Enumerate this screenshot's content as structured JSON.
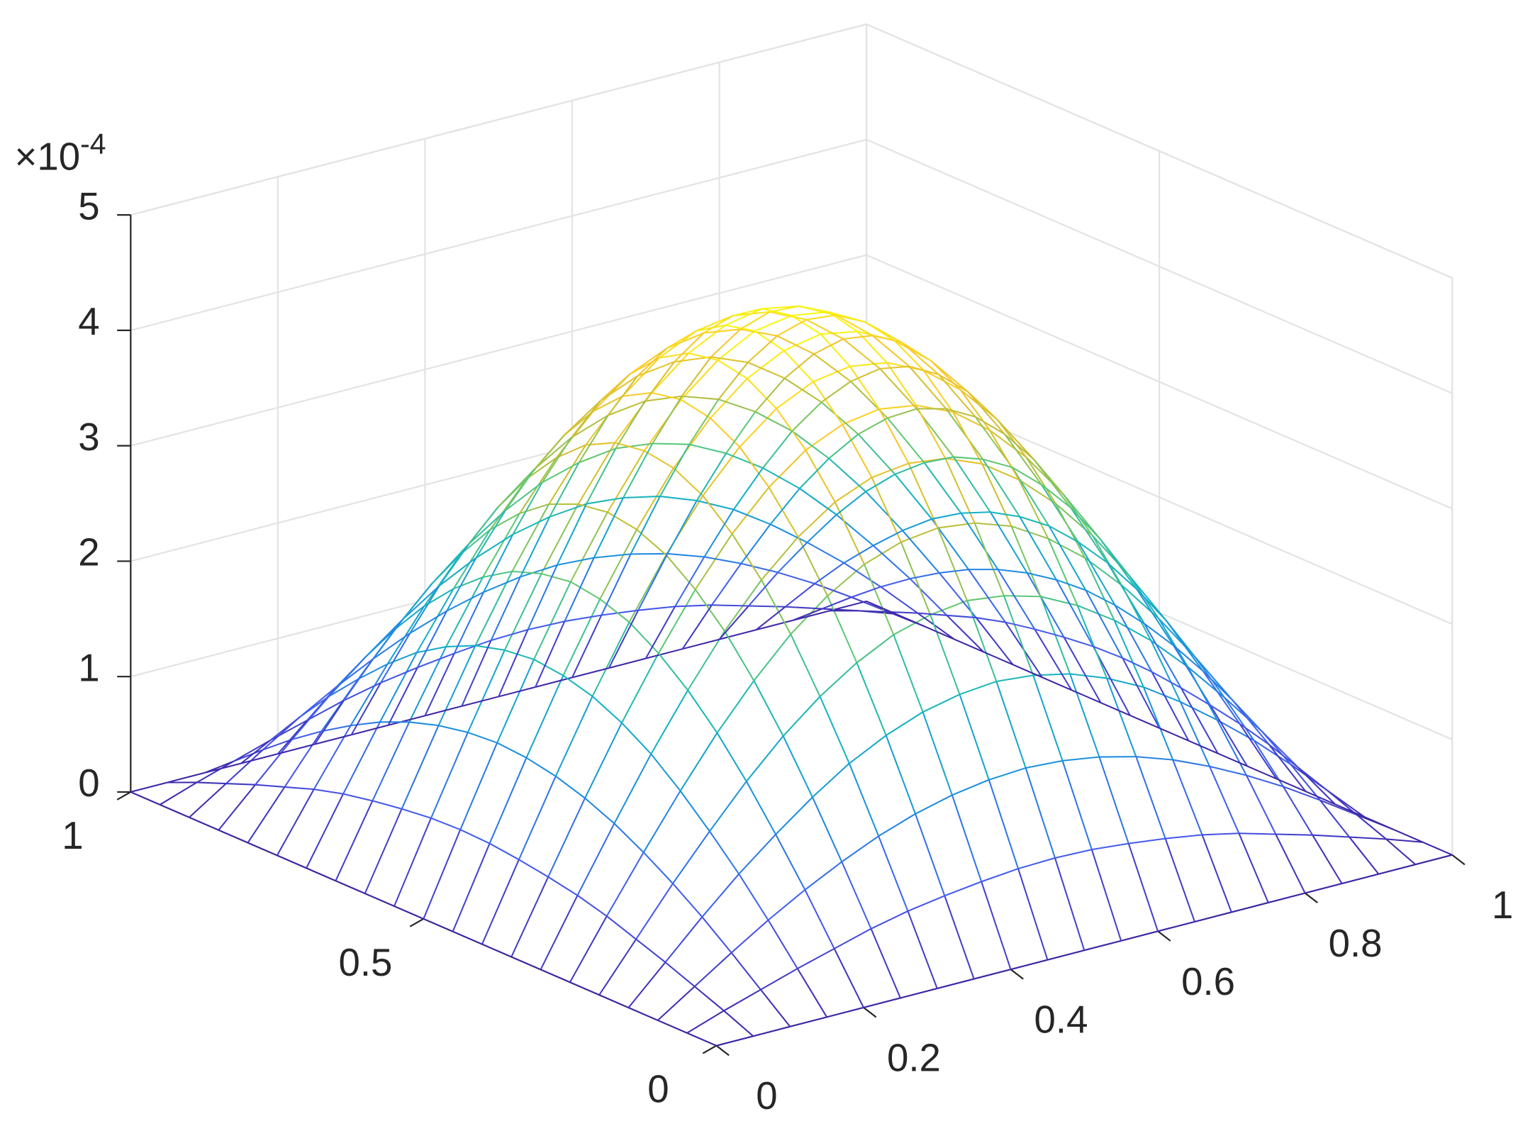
{
  "chart_data": {
    "type": "mesh",
    "z_multiplier": {
      "base": "×10",
      "exponent": "-4"
    },
    "x": [
      0,
      0.05,
      0.1,
      0.15,
      0.2,
      0.25,
      0.3,
      0.35,
      0.4,
      0.45,
      0.5,
      0.55,
      0.6,
      0.65,
      0.7,
      0.75,
      0.8,
      0.85,
      0.9,
      0.95,
      1
    ],
    "y": [
      0,
      0.05,
      0.1,
      0.15,
      0.2,
      0.25,
      0.3,
      0.35,
      0.4,
      0.45,
      0.5,
      0.55,
      0.6,
      0.65,
      0.7,
      0.75,
      0.8,
      0.85,
      0.9,
      0.95,
      1
    ],
    "z": [
      [
        0,
        0,
        0,
        0,
        0,
        0,
        0,
        0,
        0,
        0,
        0,
        0,
        0,
        0,
        0,
        0,
        0,
        0,
        0,
        0,
        0
      ],
      [
        0,
        0.11,
        0.21,
        0.31,
        0.4,
        0.49,
        0.56,
        0.61,
        0.65,
        0.68,
        0.69,
        0.68,
        0.65,
        0.61,
        0.56,
        0.49,
        0.4,
        0.31,
        0.21,
        0.11,
        0
      ],
      [
        0,
        0.21,
        0.42,
        0.62,
        0.8,
        0.96,
        1.1,
        1.21,
        1.29,
        1.34,
        1.36,
        1.34,
        1.29,
        1.21,
        1.1,
        0.96,
        0.8,
        0.62,
        0.42,
        0.21,
        0
      ],
      [
        0,
        0.31,
        0.62,
        0.91,
        1.17,
        1.41,
        1.62,
        1.78,
        1.9,
        1.97,
        2,
        1.97,
        1.9,
        1.78,
        1.62,
        1.41,
        1.17,
        0.91,
        0.62,
        0.31,
        0
      ],
      [
        0,
        0.4,
        0.8,
        1.17,
        1.52,
        1.83,
        2.09,
        2.3,
        2.46,
        2.55,
        2.59,
        2.55,
        2.46,
        2.3,
        2.09,
        1.83,
        1.52,
        1.17,
        0.8,
        0.4,
        0
      ],
      [
        0,
        0.49,
        0.96,
        1.41,
        1.83,
        2.2,
        2.52,
        2.77,
        2.96,
        3.07,
        3.11,
        3.07,
        2.96,
        2.77,
        2.52,
        2.2,
        1.83,
        1.41,
        0.96,
        0.49,
        0
      ],
      [
        0,
        0.56,
        1.1,
        1.62,
        2.09,
        2.52,
        2.88,
        3.17,
        3.39,
        3.52,
        3.56,
        3.52,
        3.39,
        3.17,
        2.88,
        2.52,
        2.09,
        1.62,
        1.1,
        0.56,
        0
      ],
      [
        0,
        0.61,
        1.21,
        1.78,
        2.3,
        2.77,
        3.17,
        3.49,
        3.73,
        3.87,
        3.92,
        3.87,
        3.73,
        3.49,
        3.17,
        2.77,
        2.3,
        1.78,
        1.21,
        0.61,
        0
      ],
      [
        0,
        0.65,
        1.29,
        1.9,
        2.46,
        2.96,
        3.39,
        3.73,
        3.98,
        4.13,
        4.18,
        4.13,
        3.98,
        3.73,
        3.39,
        2.96,
        2.46,
        1.9,
        1.29,
        0.65,
        0
      ],
      [
        0,
        0.68,
        1.34,
        1.97,
        2.55,
        3.07,
        3.52,
        3.87,
        4.13,
        4.29,
        4.35,
        4.29,
        4.13,
        3.87,
        3.52,
        3.07,
        2.55,
        1.97,
        1.34,
        0.68,
        0
      ],
      [
        0,
        0.69,
        1.36,
        2,
        2.59,
        3.11,
        3.56,
        3.92,
        4.18,
        4.35,
        4.4,
        4.35,
        4.18,
        3.92,
        3.56,
        3.11,
        2.59,
        2,
        1.36,
        0.69,
        0
      ],
      [
        0,
        0.68,
        1.34,
        1.97,
        2.55,
        3.07,
        3.52,
        3.87,
        4.13,
        4.29,
        4.35,
        4.29,
        4.13,
        3.87,
        3.52,
        3.07,
        2.55,
        1.97,
        1.34,
        0.68,
        0
      ],
      [
        0,
        0.65,
        1.29,
        1.9,
        2.46,
        2.96,
        3.39,
        3.73,
        3.98,
        4.13,
        4.18,
        4.13,
        3.98,
        3.73,
        3.39,
        2.96,
        2.46,
        1.9,
        1.29,
        0.65,
        0
      ],
      [
        0,
        0.61,
        1.21,
        1.78,
        2.3,
        2.77,
        3.17,
        3.49,
        3.73,
        3.87,
        3.92,
        3.87,
        3.73,
        3.49,
        3.17,
        2.77,
        2.3,
        1.78,
        1.21,
        0.61,
        0
      ],
      [
        0,
        0.56,
        1.1,
        1.62,
        2.09,
        2.52,
        2.88,
        3.17,
        3.39,
        3.52,
        3.56,
        3.52,
        3.39,
        3.17,
        2.88,
        2.52,
        2.09,
        1.62,
        1.1,
        0.56,
        0
      ],
      [
        0,
        0.49,
        0.96,
        1.41,
        1.83,
        2.2,
        2.52,
        2.77,
        2.96,
        3.07,
        3.11,
        3.07,
        2.96,
        2.77,
        2.52,
        2.2,
        1.83,
        1.41,
        0.96,
        0.49,
        0
      ],
      [
        0,
        0.4,
        0.8,
        1.17,
        1.52,
        1.83,
        2.09,
        2.3,
        2.46,
        2.55,
        2.59,
        2.55,
        2.46,
        2.3,
        2.09,
        1.83,
        1.52,
        1.17,
        0.8,
        0.4,
        0
      ],
      [
        0,
        0.31,
        0.62,
        0.91,
        1.17,
        1.41,
        1.62,
        1.78,
        1.9,
        1.97,
        2,
        1.97,
        1.9,
        1.78,
        1.62,
        1.41,
        1.17,
        0.91,
        0.62,
        0.31,
        0
      ],
      [
        0,
        0.21,
        0.42,
        0.62,
        0.8,
        0.96,
        1.1,
        1.21,
        1.29,
        1.34,
        1.36,
        1.34,
        1.29,
        1.21,
        1.1,
        0.96,
        0.8,
        0.62,
        0.42,
        0.21,
        0
      ],
      [
        0,
        0.11,
        0.21,
        0.31,
        0.4,
        0.49,
        0.56,
        0.61,
        0.65,
        0.68,
        0.69,
        0.68,
        0.65,
        0.61,
        0.56,
        0.49,
        0.4,
        0.31,
        0.21,
        0.11,
        0
      ],
      [
        0,
        0,
        0,
        0,
        0,
        0,
        0,
        0,
        0,
        0,
        0,
        0,
        0,
        0,
        0,
        0,
        0,
        0,
        0,
        0,
        0
      ]
    ],
    "xlim": [
      0,
      1
    ],
    "ylim": [
      0,
      1
    ],
    "zlim": [
      0,
      5
    ],
    "xticks": [
      0,
      0.2,
      0.4,
      0.6,
      0.8,
      1
    ],
    "yticks": [
      0,
      0.5,
      1
    ],
    "zticks": [
      0,
      1,
      2,
      3,
      4,
      5
    ],
    "grid": true,
    "colormap": "parula"
  }
}
